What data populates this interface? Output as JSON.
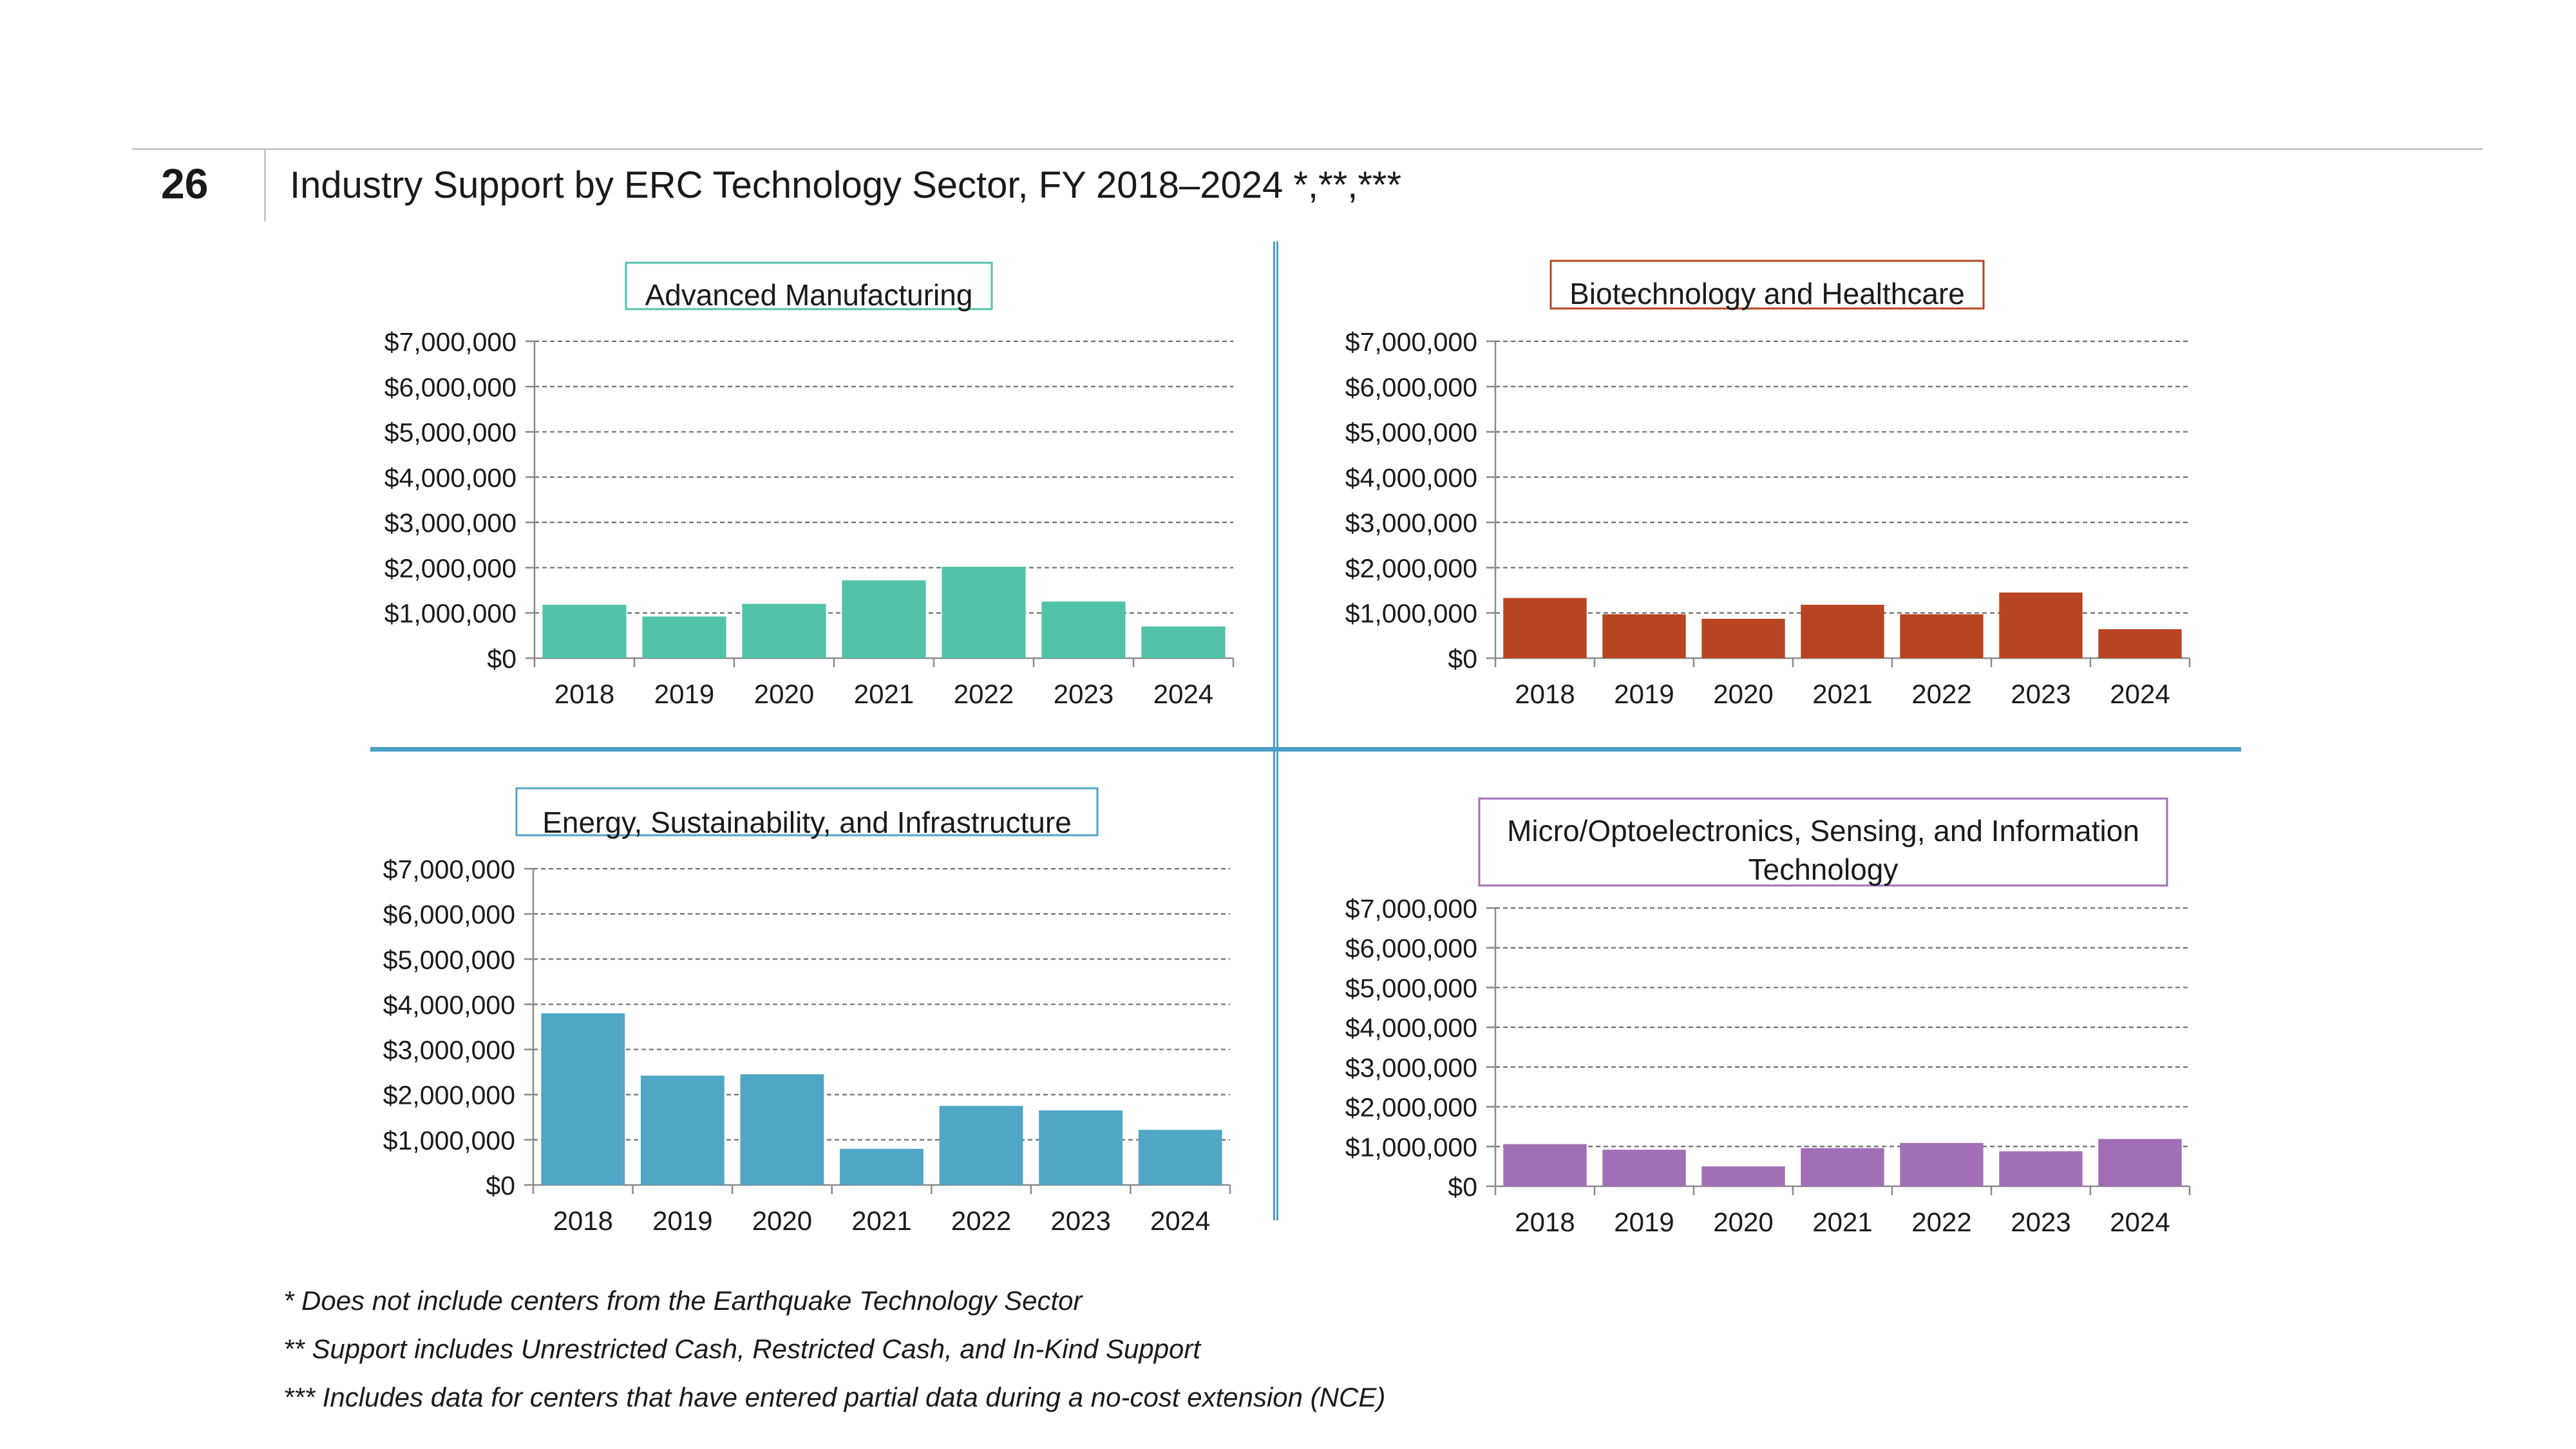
{
  "header": {
    "figure_number": "26",
    "title": "Industry Support by ERC Technology Sector, FY 2018–2024 *,**,***"
  },
  "colors": {
    "advanced_manufacturing": "#52c3a8",
    "biotechnology": "#b84522",
    "energy": "#50a6c5",
    "micro": "#a26fb6",
    "divider": "#4a9fc6"
  },
  "chart_data": [
    {
      "type": "bar",
      "title": "Advanced Manufacturing",
      "categories": [
        "2018",
        "2019",
        "2020",
        "2021",
        "2022",
        "2023",
        "2024"
      ],
      "values": [
        1180000,
        920000,
        1200000,
        1720000,
        2020000,
        1250000,
        700000
      ],
      "ylim": [
        0,
        7000000
      ],
      "yticks": [
        "$0",
        "$1,000,000",
        "$2,000,000",
        "$3,000,000",
        "$4,000,000",
        "$5,000,000",
        "$6,000,000",
        "$7,000,000"
      ],
      "grid": true,
      "color": "#52c3a8",
      "xlabel": "",
      "ylabel": ""
    },
    {
      "type": "bar",
      "title": "Biotechnology and Healthcare",
      "categories": [
        "2018",
        "2019",
        "2020",
        "2021",
        "2022",
        "2023",
        "2024"
      ],
      "values": [
        1330000,
        970000,
        870000,
        1180000,
        970000,
        1450000,
        640000
      ],
      "ylim": [
        0,
        7000000
      ],
      "yticks": [
        "$0",
        "$1,000,000",
        "$2,000,000",
        "$3,000,000",
        "$4,000,000",
        "$5,000,000",
        "$6,000,000",
        "$7,000,000"
      ],
      "grid": true,
      "color": "#b84522",
      "xlabel": "",
      "ylabel": ""
    },
    {
      "type": "bar",
      "title": "Energy, Sustainability, and Infrastructure",
      "categories": [
        "2018",
        "2019",
        "2020",
        "2021",
        "2022",
        "2023",
        "2024"
      ],
      "values": [
        3800000,
        2420000,
        2450000,
        800000,
        1750000,
        1650000,
        1220000
      ],
      "ylim": [
        0,
        7000000
      ],
      "yticks": [
        "$0",
        "$1,000,000",
        "$2,000,000",
        "$3,000,000",
        "$4,000,000",
        "$5,000,000",
        "$6,000,000",
        "$7,000,000"
      ],
      "grid": true,
      "color": "#50a6c5",
      "xlabel": "",
      "ylabel": ""
    },
    {
      "type": "bar",
      "title": "Micro/Optoelectronics, Sensing, and Information Technology",
      "categories": [
        "2018",
        "2019",
        "2020",
        "2021",
        "2022",
        "2023",
        "2024"
      ],
      "values": [
        1060000,
        920000,
        500000,
        960000,
        1090000,
        880000,
        1190000
      ],
      "ylim": [
        0,
        7000000
      ],
      "yticks": [
        "$0",
        "$1,000,000",
        "$2,000,000",
        "$3,000,000",
        "$4,000,000",
        "$5,000,000",
        "$6,000,000",
        "$7,000,000"
      ],
      "grid": true,
      "color": "#a26fb6",
      "xlabel": "",
      "ylabel": ""
    }
  ],
  "notes": [
    "* Does not include centers from the Earthquake Technology Sector",
    "** Support includes Unrestricted Cash, Restricted Cash, and In-Kind Support",
    "*** Includes data for centers that have entered partial data during a no-cost extension (NCE)"
  ]
}
